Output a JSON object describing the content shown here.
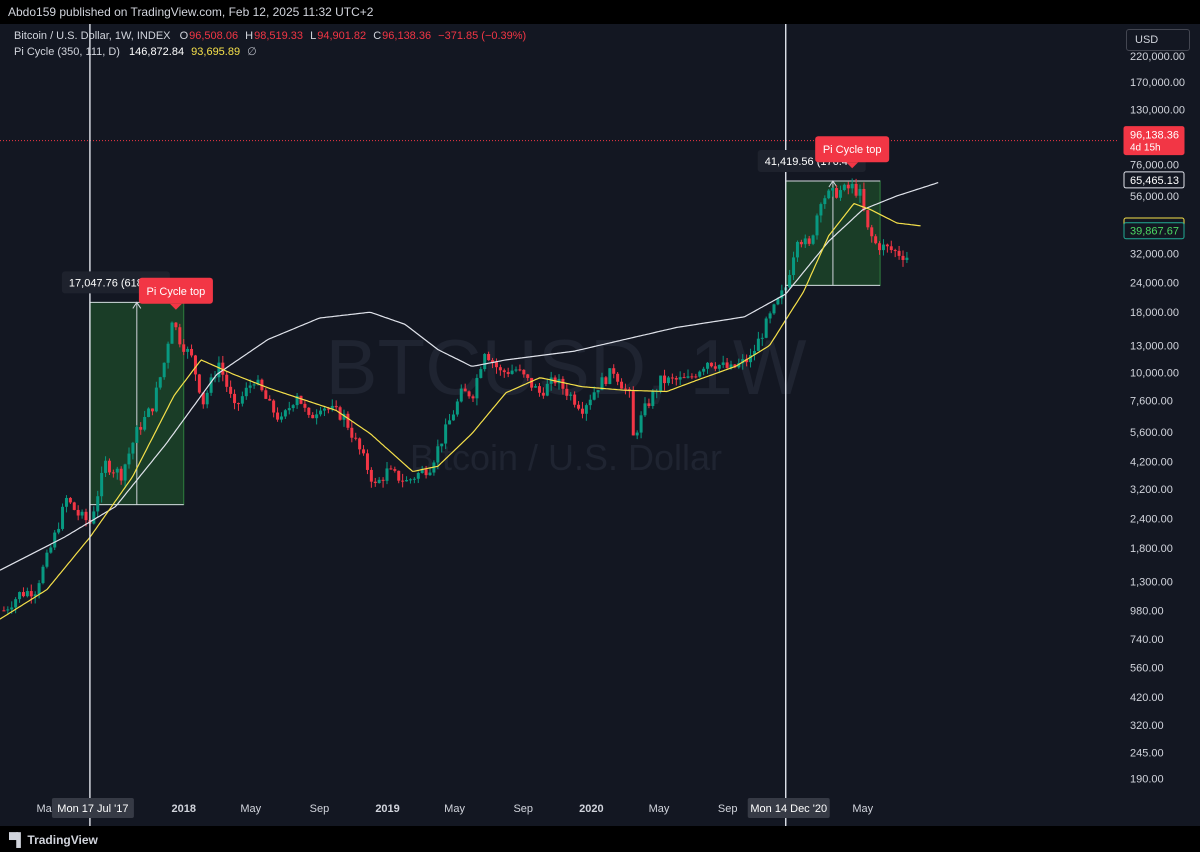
{
  "header": {
    "publisher_text": "Abdo159 published on TradingView.com, Feb 12, 2025 11:32 UTC+2"
  },
  "legend": {
    "symbol": "Bitcoin / U.S. Dollar, 1W, INDEX",
    "open_label": "O",
    "open": "96,508.06",
    "high_label": "H",
    "high": "98,519.33",
    "low_label": "L",
    "low": "94,901.82",
    "close_label": "C",
    "close": "96,138.36",
    "change": "−371.85 (−0.39%)",
    "indicator": "Pi Cycle (350, 111, D)",
    "indicator_v1": "146,872.84",
    "indicator_v2": "93,695.89",
    "indicator_v3": "∅"
  },
  "currency_button": "USD",
  "footer": {
    "brand": "TradingView"
  },
  "colors": {
    "background": "#131722",
    "up": "#089981",
    "down": "#f23645",
    "long_ma": "#e0e3eb",
    "short_ma": "#f5e04a",
    "range_box": "#1e4b2a",
    "text": "#d1d4dc",
    "muted": "#b2b5be"
  },
  "chart_data": {
    "type": "candlestick",
    "title": "Bitcoin / U.S. Dollar, 1W, INDEX",
    "watermark": "BTCUSD, 1W",
    "watermark_sub": "Bitcoin / U.S. Dollar",
    "y_scale": "log",
    "ylim": [
      160,
      300000
    ],
    "xlim": [
      "2017-02-06",
      "2022-08-01"
    ],
    "y_ticks": [
      190,
      245,
      320,
      420,
      560,
      740,
      980,
      1300,
      1800,
      2400,
      3200,
      4200,
      5600,
      7600,
      10000,
      13000,
      18000,
      24000,
      32000,
      56000,
      76000,
      130000,
      170000,
      220000
    ],
    "y_tick_labels": [
      "190.00",
      "245.00",
      "320.00",
      "420.00",
      "560.00",
      "740.00",
      "980.00",
      "1,300.00",
      "1,800.00",
      "2,400.00",
      "3,200.00",
      "4,200.00",
      "5,600.00",
      "7,600.00",
      "10,000.00",
      "13,000.00",
      "18,000.00",
      "24,000.00",
      "32,000.00",
      "56,000.00",
      "76,000.00",
      "130,000.00",
      "170,000.00",
      "220,000.00"
    ],
    "x_ticks": [
      {
        "date": "2017-05-01",
        "label": "May"
      },
      {
        "date": "2018-01-01",
        "label": "2018"
      },
      {
        "date": "2018-05-01",
        "label": "May"
      },
      {
        "date": "2018-09-01",
        "label": "Sep"
      },
      {
        "date": "2019-01-01",
        "label": "2019"
      },
      {
        "date": "2019-05-01",
        "label": "May"
      },
      {
        "date": "2019-09-01",
        "label": "Sep"
      },
      {
        "date": "2020-01-01",
        "label": "2020"
      },
      {
        "date": "2020-05-01",
        "label": "May"
      },
      {
        "date": "2020-09-01",
        "label": "Sep"
      },
      {
        "date": "2021-05-01",
        "label": "May"
      }
    ],
    "price_anchors": [
      [
        "2017-02-13",
        980
      ],
      [
        "2017-03-13",
        1150
      ],
      [
        "2017-04-10",
        1200
      ],
      [
        "2017-05-08",
        1800
      ],
      [
        "2017-06-05",
        2900
      ],
      [
        "2017-06-26",
        2500
      ],
      [
        "2017-07-17",
        2300
      ],
      [
        "2017-08-14",
        4100
      ],
      [
        "2017-09-11",
        3700
      ],
      [
        "2017-10-09",
        5600
      ],
      [
        "2017-11-06",
        7200
      ],
      [
        "2017-11-27",
        11000
      ],
      [
        "2017-12-11",
        17000
      ],
      [
        "2017-12-25",
        13800
      ],
      [
        "2018-01-15",
        11500
      ],
      [
        "2018-02-05",
        7500
      ],
      [
        "2018-03-05",
        11000
      ],
      [
        "2018-04-02",
        7000
      ],
      [
        "2018-05-07",
        9400
      ],
      [
        "2018-06-04",
        7200
      ],
      [
        "2018-06-25",
        6200
      ],
      [
        "2018-07-23",
        8200
      ],
      [
        "2018-08-13",
        6300
      ],
      [
        "2018-09-03",
        7300
      ],
      [
        "2018-10-15",
        6500
      ],
      [
        "2018-11-19",
        4300
      ],
      [
        "2018-12-10",
        3300
      ],
      [
        "2018-12-31",
        3800
      ],
      [
        "2019-02-04",
        3450
      ],
      [
        "2019-03-18",
        4000
      ],
      [
        "2019-04-08",
        5200
      ],
      [
        "2019-05-13",
        8100
      ],
      [
        "2019-06-03",
        8200
      ],
      [
        "2019-06-24",
        12500
      ],
      [
        "2019-07-22",
        10000
      ],
      [
        "2019-08-19",
        10300
      ],
      [
        "2019-09-30",
        8200
      ],
      [
        "2019-10-28",
        9300
      ],
      [
        "2019-12-16",
        7100
      ],
      [
        "2020-01-13",
        8800
      ],
      [
        "2020-02-10",
        10200
      ],
      [
        "2020-03-09",
        7900
      ],
      [
        "2020-03-16",
        5300
      ],
      [
        "2020-04-06",
        7000
      ],
      [
        "2020-05-04",
        9200
      ],
      [
        "2020-06-22",
        9300
      ],
      [
        "2020-07-27",
        11200
      ],
      [
        "2020-09-07",
        10300
      ],
      [
        "2020-10-12",
        11500
      ],
      [
        "2020-11-09",
        16000
      ],
      [
        "2020-12-14",
        23000
      ],
      [
        "2021-01-04",
        38000
      ],
      [
        "2021-01-25",
        34000
      ],
      [
        "2021-02-15",
        55000
      ],
      [
        "2021-03-15",
        58000
      ],
      [
        "2021-04-12",
        61000
      ],
      [
        "2021-04-26",
        57000
      ],
      [
        "2021-05-10",
        40000
      ],
      [
        "2021-05-24",
        35000
      ],
      [
        "2021-06-21",
        33000
      ],
      [
        "2021-07-19",
        31000
      ]
    ],
    "long_ma_anchors": [
      [
        "2017-02-06",
        1450
      ],
      [
        "2017-06-01",
        2000
      ],
      [
        "2017-09-01",
        2700
      ],
      [
        "2017-12-01",
        5000
      ],
      [
        "2018-03-01",
        9800
      ],
      [
        "2018-06-01",
        13800
      ],
      [
        "2018-09-01",
        17000
      ],
      [
        "2018-12-01",
        18000
      ],
      [
        "2019-02-01",
        16000
      ],
      [
        "2019-04-01",
        12500
      ],
      [
        "2019-06-01",
        10600
      ],
      [
        "2019-08-01",
        11300
      ],
      [
        "2019-12-01",
        12300
      ],
      [
        "2020-06-01",
        15500
      ],
      [
        "2020-10-01",
        17200
      ],
      [
        "2020-12-14",
        21500
      ],
      [
        "2021-03-01",
        36000
      ],
      [
        "2021-05-01",
        49000
      ],
      [
        "2021-07-01",
        56000
      ],
      [
        "2021-09-15",
        64000
      ]
    ],
    "short_ma_anchors": [
      [
        "2017-02-06",
        900
      ],
      [
        "2017-05-01",
        1200
      ],
      [
        "2017-07-17",
        2000
      ],
      [
        "2017-10-01",
        3600
      ],
      [
        "2017-12-15",
        8000
      ],
      [
        "2018-02-01",
        11300
      ],
      [
        "2018-04-01",
        9800
      ],
      [
        "2018-06-01",
        8600
      ],
      [
        "2018-08-01",
        7700
      ],
      [
        "2018-10-01",
        6900
      ],
      [
        "2018-12-01",
        5500
      ],
      [
        "2019-02-15",
        3800
      ],
      [
        "2019-04-01",
        4000
      ],
      [
        "2019-06-01",
        5500
      ],
      [
        "2019-08-01",
        8200
      ],
      [
        "2019-10-01",
        9500
      ],
      [
        "2019-12-15",
        8700
      ],
      [
        "2020-03-01",
        8400
      ],
      [
        "2020-05-15",
        8300
      ],
      [
        "2020-07-15",
        9400
      ],
      [
        "2020-09-15",
        10600
      ],
      [
        "2020-11-15",
        13000
      ],
      [
        "2021-01-15",
        22000
      ],
      [
        "2021-03-01",
        38000
      ],
      [
        "2021-04-15",
        52000
      ],
      [
        "2021-05-15",
        49000
      ],
      [
        "2021-07-01",
        43000
      ],
      [
        "2021-08-15",
        41749.3
      ]
    ],
    "vertical_markers": [
      {
        "date": "2017-07-17",
        "label": "Mon 17 Jul '17"
      },
      {
        "date": "2020-12-14",
        "label": "Mon 14 Dec '20"
      }
    ],
    "range_boxes": [
      {
        "start": "2017-07-17",
        "end": "2018-01-01",
        "low": 2750,
        "high": 19800,
        "label": "17,047.76 (618.46%"
      },
      {
        "start": "2020-12-14",
        "end": "2021-06-01",
        "low": 23400,
        "high": 64800,
        "label": "41,419.56 (176.4"
      }
    ],
    "signals": [
      {
        "date": "2017-12-18",
        "label": "Pi Cycle top"
      },
      {
        "date": "2021-04-12",
        "label": "Pi Cycle top"
      }
    ],
    "current_price_line": {
      "value": 96138.36
    },
    "price_labels": [
      {
        "value": 96138.36,
        "label": "96,138.36",
        "sub": "4d 15h",
        "kind": "price"
      },
      {
        "value": 65465.13,
        "label": "65,465.13",
        "kind": "long"
      },
      {
        "value": 41749.3,
        "label": "41,749.30",
        "kind": "short"
      },
      {
        "value": 39867.67,
        "label": "39,867.67",
        "kind": "last"
      }
    ]
  }
}
